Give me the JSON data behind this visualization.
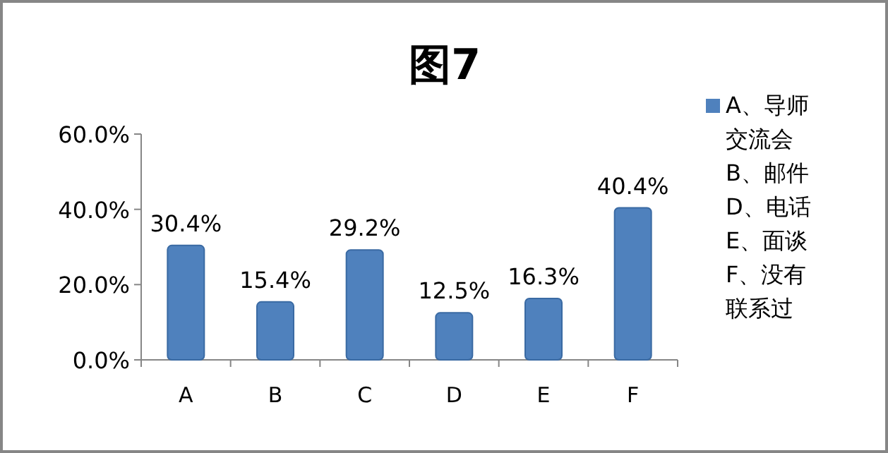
{
  "chart_data": {
    "type": "bar",
    "title": "图7",
    "categories": [
      "A",
      "B",
      "C",
      "D",
      "E",
      "F"
    ],
    "series": [
      {
        "name": "A、导师交流会 B、邮件 D、电话 E、面谈 F、没有联系过",
        "color": "#4f81bd",
        "values": [
          30.4,
          15.4,
          29.2,
          12.5,
          16.3,
          40.4
        ],
        "value_labels": [
          "30.4%",
          "15.4%",
          "29.2%",
          "12.5%",
          "16.3%",
          "40.4%"
        ]
      }
    ],
    "ylim": [
      0,
      60
    ],
    "yticks": [
      {
        "value": 0,
        "label": "0.0%"
      },
      {
        "value": 20,
        "label": "20.0%"
      },
      {
        "value": 40,
        "label": "40.0%"
      },
      {
        "value": 60,
        "label": "60.0%"
      }
    ],
    "legend": "right"
  }
}
